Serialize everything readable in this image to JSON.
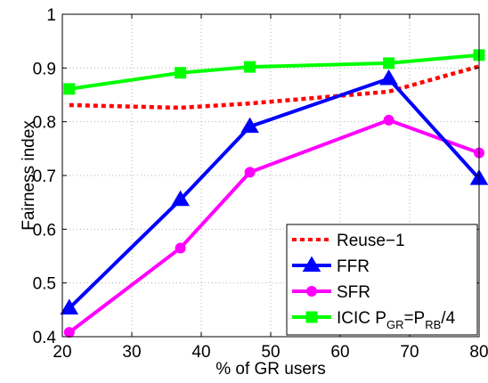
{
  "chart_data": {
    "type": "line",
    "xlabel": "% of GR users",
    "ylabel": "Fairness index",
    "xlim": [
      20,
      80
    ],
    "ylim": [
      0.4,
      1.0
    ],
    "xticks": [
      "20",
      "30",
      "40",
      "50",
      "60",
      "70",
      "80"
    ],
    "yticks": [
      "0.4",
      "0.5",
      "0.6",
      "0.7",
      "0.8",
      "0.9",
      "1"
    ],
    "grid": true,
    "legend_position": "bottom-right",
    "series": [
      {
        "name": "Reuse−1",
        "color": "#ff0000",
        "style": "dotted",
        "marker": "none",
        "x": [
          21,
          37,
          47,
          67,
          80
        ],
        "y": [
          0.831,
          0.826,
          0.834,
          0.856,
          0.903
        ]
      },
      {
        "name": "FFR",
        "color": "#0000ff",
        "style": "solid",
        "marker": "triangle",
        "x": [
          21,
          37,
          47,
          67,
          80
        ],
        "y": [
          0.453,
          0.655,
          0.791,
          0.88,
          0.694
        ]
      },
      {
        "name": "SFR",
        "color": "#ff00ff",
        "style": "solid",
        "marker": "circle",
        "x": [
          21,
          37,
          47,
          67,
          80
        ],
        "y": [
          0.408,
          0.565,
          0.706,
          0.803,
          0.742
        ]
      },
      {
        "name": "ICIC P",
        "name_sub1": "GR",
        "name_mid": "=P",
        "name_sub2": "RB",
        "name_end": "/4",
        "color": "#00ff00",
        "style": "solid",
        "marker": "square",
        "x": [
          21,
          37,
          47,
          67,
          80
        ],
        "y": [
          0.861,
          0.891,
          0.902,
          0.909,
          0.924
        ]
      }
    ]
  }
}
